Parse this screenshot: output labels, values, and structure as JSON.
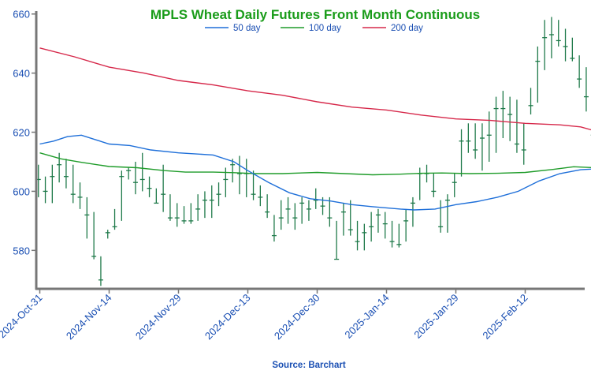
{
  "chart_data": {
    "type": "ohlc",
    "title": "MPLS Wheat Daily Futures Front Month Continuous",
    "source": "Source: Barchart",
    "colors": {
      "title": "#1a9c1a",
      "up": "#1f7a4a",
      "down": "#b31d3c",
      "ma50": "#1e6fd9",
      "ma100": "#1f9c2a",
      "ma200": "#d6284a",
      "axis": "#777777",
      "text": "#1a4fb3"
    },
    "ylim": [
      567,
      661
    ],
    "yticks": [
      580,
      600,
      620,
      640,
      660
    ],
    "xtick_labels": [
      "2024-Oct-31",
      "2024-Nov-14",
      "2024-Nov-29",
      "2024-Dec-13",
      "2024-Dec-30",
      "2025-Jan-14",
      "2025-Jan-29",
      "2025-Feb-12"
    ],
    "xtick_index": [
      0,
      10,
      20,
      30,
      40,
      50,
      60,
      70
    ],
    "legend": [
      {
        "name": "50 day",
        "color": "#1e6fd9"
      },
      {
        "name": "100 day",
        "color": "#1f9c2a"
      },
      {
        "name": "200 day",
        "color": "#d6284a"
      }
    ],
    "bars": [
      [
        -0.2,
        609,
        598,
        604,
        604
      ],
      [
        0.8,
        605,
        596,
        600,
        600
      ],
      [
        1.8,
        609,
        596,
        605,
        605
      ],
      [
        2.8,
        613,
        603,
        609,
        609
      ],
      [
        3.8,
        611,
        601,
        605,
        605
      ],
      [
        4.8,
        609,
        596,
        599,
        599
      ],
      [
        5.8,
        603,
        594,
        598,
        598
      ],
      [
        6.8,
        598,
        584,
        592,
        592
      ],
      [
        7.8,
        593,
        577,
        578,
        578
      ],
      [
        8.8,
        578,
        568,
        570,
        570
      ],
      [
        9.8,
        587,
        584,
        586,
        586
      ],
      [
        10.8,
        594,
        587,
        588,
        588
      ],
      [
        11.8,
        607,
        590,
        605,
        605
      ],
      [
        12.8,
        608,
        604,
        607,
        607
      ],
      [
        13.8,
        610,
        599,
        603,
        603
      ],
      [
        14.8,
        613,
        600,
        604,
        604
      ],
      [
        15.8,
        605,
        598,
        601,
        601
      ],
      [
        16.8,
        601,
        596,
        596,
        596
      ],
      [
        17.8,
        609,
        593,
        599,
        599
      ],
      [
        18.8,
        599,
        590,
        591,
        591
      ],
      [
        19.8,
        596,
        588,
        591,
        591
      ],
      [
        20.8,
        595,
        589,
        590,
        590
      ],
      [
        21.8,
        596,
        589,
        590,
        590
      ],
      [
        22.8,
        599,
        590,
        594,
        594
      ],
      [
        23.8,
        600,
        591,
        597,
        597
      ],
      [
        24.8,
        602,
        591,
        597,
        597
      ],
      [
        25.8,
        603,
        595,
        599,
        599
      ],
      [
        26.8,
        608,
        598,
        604,
        604
      ],
      [
        27.8,
        611,
        603,
        609,
        609
      ],
      [
        28.8,
        612,
        599,
        606,
        606
      ],
      [
        29.8,
        611,
        598,
        606,
        606
      ],
      [
        30.8,
        607,
        597,
        599,
        599
      ],
      [
        31.8,
        602,
        595,
        598,
        598
      ],
      [
        32.8,
        599,
        591,
        593,
        593
      ],
      [
        33.8,
        592,
        583,
        585,
        585
      ],
      [
        34.8,
        597,
        587,
        591,
        591
      ],
      [
        35.8,
        598,
        589,
        594,
        594
      ],
      [
        36.8,
        596,
        587,
        591,
        591
      ],
      [
        37.8,
        598,
        589,
        596,
        596
      ],
      [
        38.8,
        597,
        590,
        594,
        594
      ],
      [
        39.8,
        601,
        594,
        597,
        597
      ],
      [
        40.8,
        598,
        592,
        595,
        595
      ],
      [
        41.8,
        598,
        588,
        591,
        591
      ],
      [
        42.8,
        590,
        577,
        577,
        577
      ],
      [
        43.8,
        596,
        585,
        593,
        593
      ],
      [
        44.8,
        597,
        585,
        587,
        587
      ],
      [
        45.8,
        590,
        580,
        583,
        583
      ],
      [
        46.8,
        589,
        580,
        586,
        586
      ],
      [
        47.8,
        593,
        583,
        588,
        588
      ],
      [
        48.8,
        594,
        586,
        592,
        592
      ],
      [
        49.8,
        593,
        584,
        589,
        589
      ],
      [
        50.8,
        590,
        581,
        583,
        583
      ],
      [
        51.8,
        589,
        581,
        582,
        582
      ],
      [
        52.8,
        594,
        583,
        590,
        590
      ],
      [
        53.8,
        598,
        588,
        596,
        596
      ],
      [
        54.8,
        608,
        597,
        606,
        606
      ],
      [
        55.8,
        609,
        603,
        606,
        606
      ],
      [
        56.8,
        606,
        598,
        600,
        600
      ],
      [
        57.8,
        597,
        586,
        588,
        588
      ],
      [
        58.8,
        599,
        586,
        597,
        597
      ],
      [
        59.8,
        606,
        598,
        603,
        603
      ],
      [
        60.8,
        621,
        605,
        617,
        617
      ],
      [
        61.8,
        623,
        613,
        617,
        617
      ],
      [
        62.8,
        623,
        611,
        614,
        614
      ],
      [
        63.8,
        623,
        607,
        618,
        618
      ],
      [
        64.8,
        627,
        610,
        619,
        619
      ],
      [
        65.8,
        632,
        613,
        628,
        628
      ],
      [
        66.8,
        634,
        618,
        628,
        628
      ],
      [
        67.8,
        632,
        617,
        626,
        626
      ],
      [
        68.8,
        631,
        613,
        616,
        616
      ],
      [
        69.8,
        623,
        609,
        614,
        614
      ],
      [
        70.8,
        635,
        626,
        629,
        629
      ],
      [
        71.8,
        649,
        630,
        644,
        644
      ],
      [
        72.8,
        658,
        641,
        652,
        652
      ],
      [
        73.8,
        659,
        645,
        653,
        653
      ],
      [
        74.8,
        658,
        649,
        651,
        651
      ],
      [
        75.8,
        655,
        644,
        649,
        649
      ],
      [
        76.8,
        652,
        644,
        645,
        645
      ],
      [
        77.8,
        646,
        635,
        638,
        638
      ],
      [
        78.8,
        642,
        627,
        632,
        632
      ],
      [
        79.8,
        633,
        617,
        619,
        619
      ]
    ],
    "ma50": [
      [
        0,
        616
      ],
      [
        2,
        617
      ],
      [
        4,
        618.5
      ],
      [
        6,
        619
      ],
      [
        8,
        617.5
      ],
      [
        10,
        616
      ],
      [
        13,
        615.5
      ],
      [
        16,
        614
      ],
      [
        20,
        613
      ],
      [
        25,
        612.3
      ],
      [
        28,
        610
      ],
      [
        30,
        607
      ],
      [
        33,
        603
      ],
      [
        36,
        599.5
      ],
      [
        39,
        597.5
      ],
      [
        42,
        596.7
      ],
      [
        45,
        595.5
      ],
      [
        48,
        594.8
      ],
      [
        52,
        594
      ],
      [
        54,
        593.7
      ],
      [
        57,
        594
      ],
      [
        60,
        595.5
      ],
      [
        63,
        596.5
      ],
      [
        66,
        598
      ],
      [
        69,
        600
      ],
      [
        72,
        603.5
      ],
      [
        75,
        606
      ],
      [
        78,
        607.3
      ],
      [
        80,
        607.6
      ]
    ],
    "ma100": [
      [
        0,
        613
      ],
      [
        3,
        611
      ],
      [
        6,
        609.8
      ],
      [
        10,
        608.4
      ],
      [
        14,
        608
      ],
      [
        18,
        607
      ],
      [
        21,
        606.5
      ],
      [
        25,
        606.5
      ],
      [
        28,
        606.3
      ],
      [
        31,
        606
      ],
      [
        35,
        606
      ],
      [
        40,
        606.4
      ],
      [
        44,
        606
      ],
      [
        48,
        605.6
      ],
      [
        52,
        605.8
      ],
      [
        55,
        606.1
      ],
      [
        58,
        606.2
      ],
      [
        62,
        606
      ],
      [
        66,
        606.1
      ],
      [
        70,
        606.4
      ],
      [
        74,
        607.4
      ],
      [
        77,
        608.3
      ],
      [
        80,
        608
      ]
    ],
    "ma200": [
      [
        0,
        648.5
      ],
      [
        5,
        645.5
      ],
      [
        10,
        642
      ],
      [
        15,
        640
      ],
      [
        20,
        637.5
      ],
      [
        25,
        636
      ],
      [
        30,
        634
      ],
      [
        35,
        632.5
      ],
      [
        40,
        630.3
      ],
      [
        45,
        628.5
      ],
      [
        50,
        627.5
      ],
      [
        55,
        625.8
      ],
      [
        60,
        624.5
      ],
      [
        65,
        624
      ],
      [
        70,
        623
      ],
      [
        75,
        622.5
      ],
      [
        78,
        621.8
      ],
      [
        80,
        620.5
      ]
    ]
  }
}
